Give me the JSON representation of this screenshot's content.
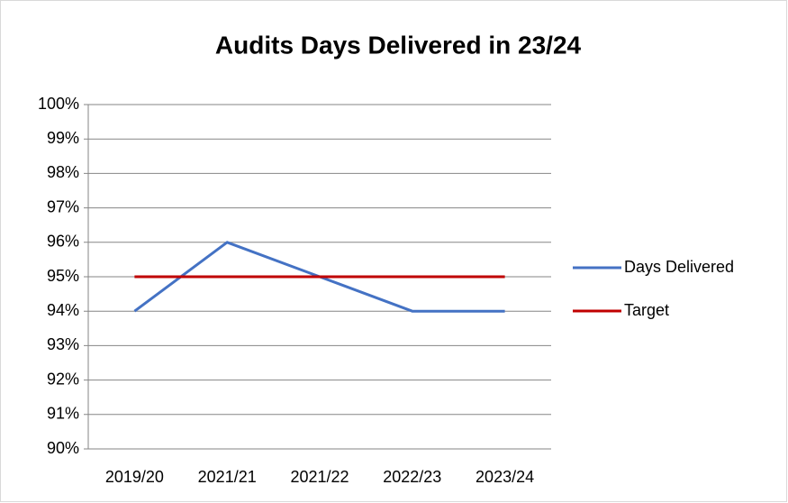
{
  "chart_data": {
    "type": "line",
    "title": "Audits Days Delivered in 23/24",
    "categories": [
      "2019/20",
      "2021/21",
      "2021/22",
      "2022/23",
      "2023/24"
    ],
    "series": [
      {
        "name": "Days Delivered",
        "color": "#4472c4",
        "values": [
          94,
          96,
          95,
          94,
          94
        ]
      },
      {
        "name": "Target",
        "color": "#c00000",
        "values": [
          95,
          95,
          95,
          95,
          95
        ]
      }
    ],
    "ylim": [
      90,
      100
    ],
    "yticks": [
      {
        "value": 90,
        "label": "90%"
      },
      {
        "value": 91,
        "label": "91%"
      },
      {
        "value": 92,
        "label": "92%"
      },
      {
        "value": 93,
        "label": "93%"
      },
      {
        "value": 94,
        "label": "94%"
      },
      {
        "value": 95,
        "label": "95%"
      },
      {
        "value": 96,
        "label": "96%"
      },
      {
        "value": 97,
        "label": "97%"
      },
      {
        "value": 98,
        "label": "98%"
      },
      {
        "value": 99,
        "label": "99%"
      },
      {
        "value": 100,
        "label": "100%"
      }
    ],
    "grid": true,
    "legend": "right"
  }
}
